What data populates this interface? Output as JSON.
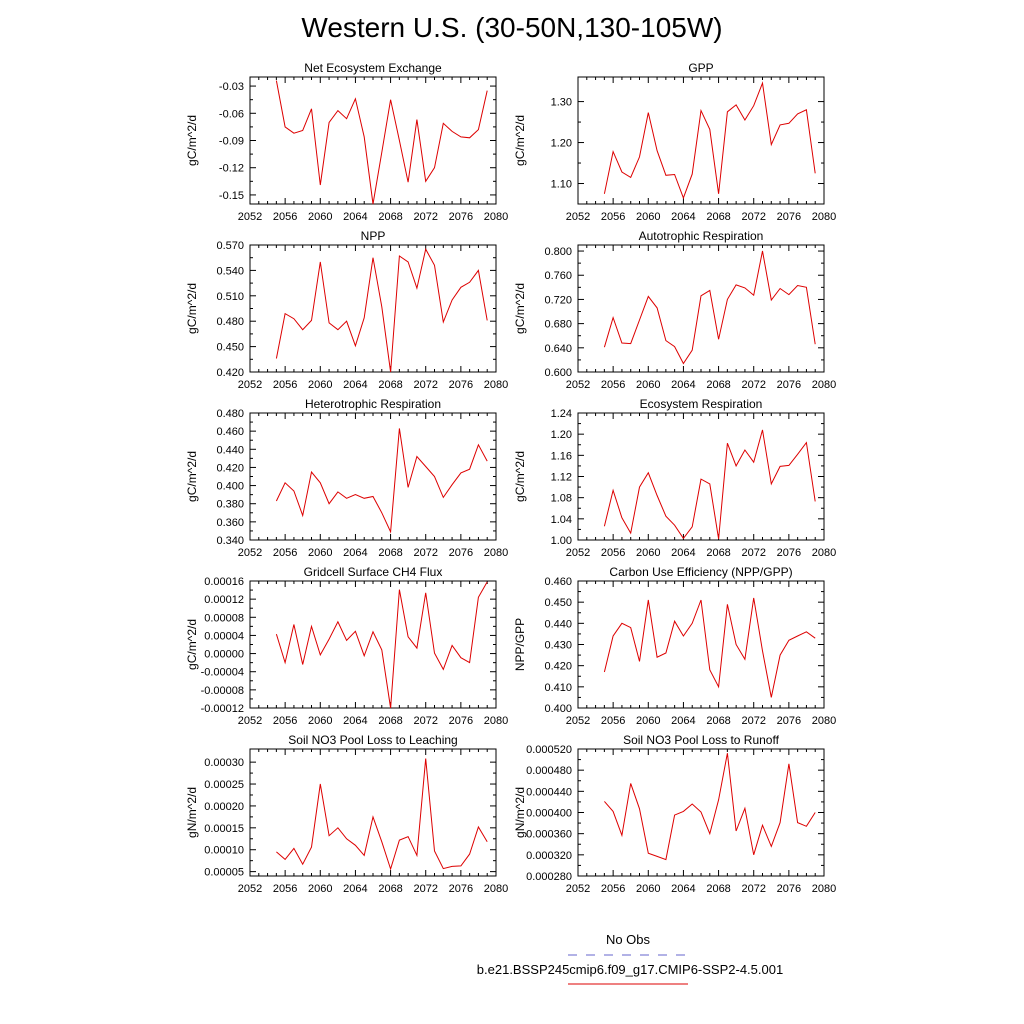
{
  "figure": {
    "title": "Western U.S. (30-50N,130-105W)"
  },
  "legend": {
    "entries": [
      {
        "label": "No Obs",
        "color": "#6666cc",
        "style": "dashed"
      },
      {
        "label": "b.e21.BSSP245cmip6.f09_g17.CMIP6-SSP2-4.5.001",
        "color": "#dd0000",
        "style": "solid"
      }
    ]
  },
  "colors": {
    "series": "#dd0000",
    "axis": "#000000"
  },
  "chart_data": [
    {
      "type": "line",
      "title": "Net Ecosystem Exchange",
      "ylabel": "gC/m^2/d",
      "xlim": [
        2052,
        2080
      ],
      "xticks": [
        "2052",
        "2056",
        "2060",
        "2064",
        "2068",
        "2072",
        "2076",
        "2080"
      ],
      "ylim": [
        -0.16,
        -0.02
      ],
      "yticks": [
        "-0.03",
        "-0.06",
        "-0.09",
        "-0.12",
        "-0.15"
      ],
      "ytick_values": [
        -0.03,
        -0.06,
        -0.09,
        -0.12,
        -0.15
      ],
      "x": [
        2055,
        2056,
        2057,
        2058,
        2059,
        2060,
        2061,
        2062,
        2063,
        2064,
        2065,
        2066,
        2067,
        2068,
        2069,
        2070,
        2071,
        2072,
        2073,
        2074,
        2075,
        2076,
        2077,
        2078,
        2079
      ],
      "y": [
        -0.024,
        -0.075,
        -0.082,
        -0.079,
        -0.055,
        -0.139,
        -0.07,
        -0.057,
        -0.066,
        -0.044,
        -0.086,
        -0.16,
        -0.103,
        -0.045,
        -0.09,
        -0.136,
        -0.067,
        -0.135,
        -0.12,
        -0.071,
        -0.08,
        -0.086,
        -0.087,
        -0.078,
        -0.035
      ]
    },
    {
      "type": "line",
      "title": "GPP",
      "ylabel": "gC/m^2/d",
      "xlim": [
        2052,
        2080
      ],
      "xticks": [
        "2052",
        "2056",
        "2060",
        "2064",
        "2068",
        "2072",
        "2076",
        "2080"
      ],
      "ylim": [
        1.05,
        1.36
      ],
      "yticks": [
        "1.30",
        "1.20",
        "1.10"
      ],
      "ytick_values": [
        1.3,
        1.2,
        1.1
      ],
      "x": [
        2055,
        2056,
        2057,
        2058,
        2059,
        2060,
        2061,
        2062,
        2063,
        2064,
        2065,
        2066,
        2067,
        2068,
        2069,
        2070,
        2071,
        2072,
        2073,
        2074,
        2075,
        2076,
        2077,
        2078,
        2079
      ],
      "y": [
        1.075,
        1.178,
        1.128,
        1.115,
        1.165,
        1.273,
        1.18,
        1.12,
        1.122,
        1.065,
        1.123,
        1.278,
        1.232,
        1.075,
        1.275,
        1.292,
        1.255,
        1.29,
        1.345,
        1.195,
        1.243,
        1.247,
        1.27,
        1.28,
        1.125
      ]
    },
    {
      "type": "line",
      "title": "NPP",
      "ylabel": "gC/m^2/d",
      "xlim": [
        2052,
        2080
      ],
      "xticks": [
        "2052",
        "2056",
        "2060",
        "2064",
        "2068",
        "2072",
        "2076",
        "2080"
      ],
      "ylim": [
        0.42,
        0.57
      ],
      "yticks": [
        "0.570",
        "0.540",
        "0.510",
        "0.480",
        "0.450",
        "0.420"
      ],
      "ytick_values": [
        0.57,
        0.54,
        0.51,
        0.48,
        0.45,
        0.42
      ],
      "x": [
        2055,
        2056,
        2057,
        2058,
        2059,
        2060,
        2061,
        2062,
        2063,
        2064,
        2065,
        2066,
        2067,
        2068,
        2069,
        2070,
        2071,
        2072,
        2073,
        2074,
        2075,
        2076,
        2077,
        2078,
        2079
      ],
      "y": [
        0.436,
        0.489,
        0.483,
        0.47,
        0.481,
        0.55,
        0.478,
        0.47,
        0.48,
        0.451,
        0.484,
        0.555,
        0.497,
        0.42,
        0.557,
        0.55,
        0.519,
        0.565,
        0.546,
        0.479,
        0.505,
        0.52,
        0.526,
        0.54,
        0.481
      ]
    },
    {
      "type": "line",
      "title": "Autotrophic Respiration",
      "ylabel": "gC/m^2/d",
      "xlim": [
        2052,
        2080
      ],
      "xticks": [
        "2052",
        "2056",
        "2060",
        "2064",
        "2068",
        "2072",
        "2076",
        "2080"
      ],
      "ylim": [
        0.6,
        0.81
      ],
      "yticks": [
        "0.800",
        "0.760",
        "0.720",
        "0.680",
        "0.640",
        "0.600"
      ],
      "ytick_values": [
        0.8,
        0.76,
        0.72,
        0.68,
        0.64,
        0.6
      ],
      "x": [
        2055,
        2056,
        2057,
        2058,
        2059,
        2060,
        2061,
        2062,
        2063,
        2064,
        2065,
        2066,
        2067,
        2068,
        2069,
        2070,
        2071,
        2072,
        2073,
        2074,
        2075,
        2076,
        2077,
        2078,
        2079
      ],
      "y": [
        0.641,
        0.69,
        0.648,
        0.647,
        0.686,
        0.725,
        0.706,
        0.652,
        0.642,
        0.614,
        0.636,
        0.726,
        0.735,
        0.654,
        0.72,
        0.744,
        0.739,
        0.727,
        0.8,
        0.719,
        0.738,
        0.728,
        0.743,
        0.74,
        0.646
      ]
    },
    {
      "type": "line",
      "title": "Heterotrophic Respiration",
      "ylabel": "gC/m^2/d",
      "xlim": [
        2052,
        2080
      ],
      "xticks": [
        "2052",
        "2056",
        "2060",
        "2064",
        "2068",
        "2072",
        "2076",
        "2080"
      ],
      "ylim": [
        0.34,
        0.48
      ],
      "yticks": [
        "0.480",
        "0.460",
        "0.440",
        "0.420",
        "0.400",
        "0.380",
        "0.360",
        "0.340"
      ],
      "ytick_values": [
        0.48,
        0.46,
        0.44,
        0.42,
        0.4,
        0.38,
        0.36,
        0.34
      ],
      "x": [
        2055,
        2056,
        2057,
        2058,
        2059,
        2060,
        2061,
        2062,
        2063,
        2064,
        2065,
        2066,
        2067,
        2068,
        2069,
        2070,
        2071,
        2072,
        2073,
        2074,
        2075,
        2076,
        2077,
        2078,
        2079
      ],
      "y": [
        0.383,
        0.403,
        0.394,
        0.367,
        0.415,
        0.403,
        0.38,
        0.393,
        0.386,
        0.39,
        0.386,
        0.388,
        0.37,
        0.349,
        0.463,
        0.398,
        0.432,
        0.421,
        0.41,
        0.387,
        0.401,
        0.414,
        0.418,
        0.445,
        0.427
      ]
    },
    {
      "type": "line",
      "title": "Ecosystem Respiration",
      "ylabel": "gC/m^2/d",
      "xlim": [
        2052,
        2080
      ],
      "xticks": [
        "2052",
        "2056",
        "2060",
        "2064",
        "2068",
        "2072",
        "2076",
        "2080"
      ],
      "ylim": [
        1.0,
        1.24
      ],
      "yticks": [
        "1.24",
        "1.20",
        "1.16",
        "1.12",
        "1.08",
        "1.04",
        "1.00"
      ],
      "ytick_values": [
        1.24,
        1.2,
        1.16,
        1.12,
        1.08,
        1.04,
        1.0
      ],
      "x": [
        2055,
        2056,
        2057,
        2058,
        2059,
        2060,
        2061,
        2062,
        2063,
        2064,
        2065,
        2066,
        2067,
        2068,
        2069,
        2070,
        2071,
        2072,
        2073,
        2074,
        2075,
        2076,
        2077,
        2078,
        2079
      ],
      "y": [
        1.026,
        1.094,
        1.042,
        1.013,
        1.1,
        1.127,
        1.084,
        1.045,
        1.028,
        1.003,
        1.025,
        1.115,
        1.106,
        1.002,
        1.183,
        1.14,
        1.17,
        1.147,
        1.208,
        1.106,
        1.139,
        1.141,
        1.162,
        1.184,
        1.073
      ]
    },
    {
      "type": "line",
      "title": "Gridcell Surface CH4 Flux",
      "ylabel": "gC/m^2/d",
      "xlim": [
        2052,
        2080
      ],
      "xticks": [
        "2052",
        "2056",
        "2060",
        "2064",
        "2068",
        "2072",
        "2076",
        "2080"
      ],
      "ylim": [
        -0.00012,
        0.00016
      ],
      "yticks": [
        "0.00016",
        "0.00012",
        "0.00008",
        "0.00004",
        "0.00000",
        "-0.00004",
        "-0.00008",
        "-0.00012"
      ],
      "ytick_values": [
        0.00016,
        0.00012,
        8e-05,
        4e-05,
        0.0,
        -4e-05,
        -8e-05,
        -0.00012
      ],
      "x": [
        2055,
        2056,
        2057,
        2058,
        2059,
        2060,
        2061,
        2062,
        2063,
        2064,
        2065,
        2066,
        2067,
        2068,
        2069,
        2070,
        2071,
        2072,
        2073,
        2074,
        2075,
        2076,
        2077,
        2078,
        2079
      ],
      "y": [
        4.3e-05,
        -2e-05,
        6.4e-05,
        -2.4e-05,
        6e-05,
        -3e-06,
        3.2e-05,
        7e-05,
        2.9e-05,
        4.9e-05,
        -5e-06,
        4.8e-05,
        8e-06,
        -0.00012,
        0.000141,
        3.7e-05,
        1.2e-05,
        0.000134,
        1e-06,
        -3.5e-05,
        1.8e-05,
        -9e-06,
        -2e-05,
        0.000124,
        0.000158
      ]
    },
    {
      "type": "line",
      "title": "Carbon Use Efficiency (NPP/GPP)",
      "ylabel": "NPP/GPP",
      "xlim": [
        2052,
        2080
      ],
      "xticks": [
        "2052",
        "2056",
        "2060",
        "2064",
        "2068",
        "2072",
        "2076",
        "2080"
      ],
      "ylim": [
        0.4,
        0.46
      ],
      "yticks": [
        "0.460",
        "0.450",
        "0.440",
        "0.430",
        "0.420",
        "0.410",
        "0.400"
      ],
      "ytick_values": [
        0.46,
        0.45,
        0.44,
        0.43,
        0.42,
        0.41,
        0.4
      ],
      "x": [
        2055,
        2056,
        2057,
        2058,
        2059,
        2060,
        2061,
        2062,
        2063,
        2064,
        2065,
        2066,
        2067,
        2068,
        2069,
        2070,
        2071,
        2072,
        2073,
        2074,
        2075,
        2076,
        2077,
        2078,
        2079
      ],
      "y": [
        0.417,
        0.434,
        0.44,
        0.438,
        0.422,
        0.451,
        0.424,
        0.426,
        0.441,
        0.434,
        0.44,
        0.451,
        0.418,
        0.41,
        0.449,
        0.43,
        0.423,
        0.452,
        0.427,
        0.405,
        0.425,
        0.432,
        0.434,
        0.436,
        0.433
      ]
    },
    {
      "type": "line",
      "title": "Soil NO3 Pool Loss to Leaching",
      "ylabel": "gN/m^2/d",
      "xlim": [
        2052,
        2080
      ],
      "xticks": [
        "2052",
        "2056",
        "2060",
        "2064",
        "2068",
        "2072",
        "2076",
        "2080"
      ],
      "ylim": [
        4e-05,
        0.00033
      ],
      "yticks": [
        "0.00030",
        "0.00025",
        "0.00020",
        "0.00015",
        "0.00010",
        "0.00005"
      ],
      "ytick_values": [
        0.0003,
        0.00025,
        0.0002,
        0.00015,
        0.0001,
        5e-05
      ],
      "x": [
        2055,
        2056,
        2057,
        2058,
        2059,
        2060,
        2061,
        2062,
        2063,
        2064,
        2065,
        2066,
        2067,
        2068,
        2069,
        2070,
        2071,
        2072,
        2073,
        2074,
        2075,
        2076,
        2077,
        2078,
        2079
      ],
      "y": [
        9.5e-05,
        7.8e-05,
        0.000103,
        6.7e-05,
        0.000106,
        0.00025,
        0.000132,
        0.00015,
        0.000125,
        0.00011,
        8.7e-05,
        0.000175,
        0.000118,
        5.6e-05,
        0.000122,
        0.00013,
        8.7e-05,
        0.000308,
        9.7e-05,
        5.7e-05,
        6.2e-05,
        6.3e-05,
        9e-05,
        0.000152,
        0.000118
      ]
    },
    {
      "type": "line",
      "title": "Soil NO3 Pool Loss to Runoff",
      "ylabel": "gN/m^2/d",
      "xlim": [
        2052,
        2080
      ],
      "xticks": [
        "2052",
        "2056",
        "2060",
        "2064",
        "2068",
        "2072",
        "2076",
        "2080"
      ],
      "ylim": [
        0.00028,
        0.00052
      ],
      "yticks": [
        "0.000520",
        "0.000480",
        "0.000440",
        "0.000400",
        "0.000360",
        "0.000320",
        "0.000280"
      ],
      "ytick_values": [
        0.00052,
        0.00048,
        0.00044,
        0.0004,
        0.00036,
        0.00032,
        0.00028
      ],
      "x": [
        2055,
        2056,
        2057,
        2058,
        2059,
        2060,
        2061,
        2062,
        2063,
        2064,
        2065,
        2066,
        2067,
        2068,
        2069,
        2070,
        2071,
        2072,
        2073,
        2074,
        2075,
        2076,
        2077,
        2078,
        2079
      ],
      "y": [
        0.000421,
        0.000402,
        0.000357,
        0.000455,
        0.000407,
        0.000323,
        0.000317,
        0.000311,
        0.000395,
        0.000402,
        0.000416,
        0.000401,
        0.00036,
        0.000424,
        0.000512,
        0.000365,
        0.000408,
        0.00032,
        0.000376,
        0.000336,
        0.000381,
        0.000492,
        0.000381,
        0.000374,
        0.0004
      ]
    }
  ]
}
